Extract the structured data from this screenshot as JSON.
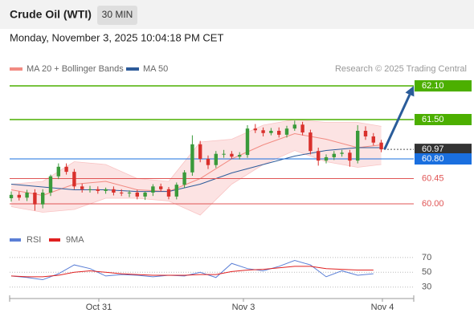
{
  "header": {
    "title": "Crude Oil (WTI)",
    "timeframe": "30 MIN",
    "datetime": "Monday, November 3, 2025 10:04:18 PM CET"
  },
  "chart_data": [
    {
      "type": "candlestick",
      "legend": [
        {
          "name": "MA 20 + Bollinger Bands",
          "color": "#f28b82"
        },
        {
          "name": "MA 50",
          "color": "#2d5b9a"
        }
      ],
      "credit": "Research © 2025 Trading Central",
      "up_color": "#3a9a3a",
      "down_color": "#d9302c",
      "ylim": [
        59.6,
        62.55
      ],
      "xlabels": [
        "Oct 31",
        "Nov 3",
        "Nov 4"
      ],
      "open": [
        60.1,
        60.16,
        60.11,
        60.2,
        59.99,
        60.2,
        60.49,
        60.66,
        60.57,
        60.31,
        60.26,
        60.26,
        60.23,
        60.26,
        60.2,
        60.19,
        60.2,
        60.13,
        60.2,
        60.31,
        60.26,
        60.13,
        60.34,
        60.56,
        61.06,
        60.8,
        60.69,
        60.89,
        60.89,
        60.84,
        60.87,
        61.34,
        61.31,
        61.26,
        61.3,
        61.23,
        61.34,
        61.41,
        61.27,
        60.94,
        60.77,
        60.83,
        60.89,
        60.91,
        60.77,
        61.3,
        61.2,
        61.09
      ],
      "high": [
        60.22,
        60.22,
        60.25,
        60.26,
        60.26,
        60.52,
        60.72,
        60.72,
        60.62,
        60.36,
        60.32,
        60.31,
        60.29,
        60.31,
        60.26,
        60.24,
        60.25,
        60.22,
        60.35,
        60.36,
        60.3,
        60.38,
        60.6,
        61.22,
        61.12,
        60.86,
        60.94,
        60.96,
        60.94,
        60.92,
        61.4,
        61.42,
        61.36,
        61.35,
        61.36,
        61.39,
        61.48,
        61.46,
        61.32,
        61.0,
        60.88,
        60.94,
        60.96,
        60.96,
        61.4,
        61.38,
        61.26,
        61.14
      ],
      "low": [
        60.04,
        60.06,
        60.05,
        59.88,
        59.92,
        60.14,
        60.44,
        60.52,
        60.26,
        60.2,
        60.2,
        60.18,
        60.18,
        60.15,
        60.14,
        60.12,
        60.08,
        60.07,
        60.14,
        60.22,
        60.08,
        60.08,
        60.28,
        60.5,
        60.74,
        60.62,
        60.64,
        60.82,
        60.8,
        60.79,
        60.82,
        61.26,
        61.2,
        61.22,
        61.18,
        61.18,
        61.3,
        61.22,
        60.88,
        60.68,
        60.72,
        60.78,
        60.84,
        60.66,
        60.72,
        61.14,
        61.04,
        60.92
      ],
      "close": [
        60.16,
        60.11,
        60.2,
        59.99,
        60.2,
        60.49,
        60.66,
        60.57,
        60.31,
        60.26,
        60.26,
        60.23,
        60.26,
        60.2,
        60.19,
        60.2,
        60.13,
        60.2,
        60.31,
        60.26,
        60.13,
        60.34,
        60.56,
        61.06,
        60.8,
        60.69,
        60.89,
        60.89,
        60.84,
        60.87,
        61.34,
        61.31,
        61.26,
        61.3,
        61.23,
        61.34,
        61.41,
        61.27,
        60.94,
        60.77,
        60.83,
        60.89,
        60.91,
        60.77,
        61.3,
        61.2,
        61.09,
        60.97
      ],
      "overlays": {
        "x": [
          0,
          4,
          8,
          12,
          16,
          20,
          24,
          28,
          32,
          36,
          40,
          44,
          47
        ],
        "ma20": [
          60.25,
          60.15,
          60.35,
          60.4,
          60.25,
          60.22,
          60.45,
          60.8,
          61.05,
          61.25,
          61.15,
          61.0,
          61.05
        ],
        "ma50": [
          60.35,
          60.3,
          60.25,
          60.25,
          60.22,
          60.22,
          60.35,
          60.55,
          60.7,
          60.85,
          60.95,
          61.0,
          61.0
        ],
        "bb_upper": [
          60.35,
          60.4,
          60.75,
          60.7,
          60.45,
          60.4,
          61.1,
          61.15,
          61.4,
          61.5,
          61.45,
          61.45,
          61.38
        ],
        "bb_lower": [
          59.95,
          59.85,
          59.9,
          60.1,
          60.1,
          60.05,
          59.8,
          60.35,
          60.7,
          60.95,
          60.75,
          60.65,
          60.7
        ]
      },
      "levels": [
        {
          "value": 62.1,
          "label": "62.10",
          "color": "#4caf00",
          "kind": "resistance"
        },
        {
          "value": 61.5,
          "label": "61.50",
          "color": "#4caf00",
          "kind": "resistance"
        },
        {
          "value": 60.97,
          "label": "60.97",
          "color": "#333333",
          "kind": "last"
        },
        {
          "value": 60.8,
          "label": "60.80",
          "color": "#1a6fdf",
          "kind": "pivot"
        },
        {
          "value": 60.45,
          "label": "60.45",
          "color": "#e05555",
          "kind": "support"
        },
        {
          "value": 60,
          "label": "60.00",
          "color": "#e05555",
          "kind": "support"
        }
      ]
    },
    {
      "type": "line",
      "legend": [
        {
          "name": "RSI",
          "color": "#5b7fd6"
        },
        {
          "name": "9MA",
          "color": "#e02020"
        }
      ],
      "ylim": [
        20,
        85
      ],
      "yticks": [
        70,
        50,
        30
      ],
      "x": [
        0,
        2,
        4,
        6,
        8,
        10,
        12,
        14,
        16,
        18,
        20,
        22,
        24,
        26,
        28,
        30,
        32,
        34,
        36,
        38,
        40,
        42,
        44,
        46
      ],
      "rsi": [
        45,
        43,
        40,
        48,
        60,
        55,
        45,
        47,
        46,
        44,
        46,
        45,
        50,
        43,
        62,
        55,
        52,
        58,
        66,
        60,
        44,
        52,
        46,
        48
      ],
      "ma9": [
        45,
        44,
        44,
        46,
        50,
        52,
        50,
        48,
        47,
        46,
        46,
        46,
        47,
        47,
        51,
        53,
        54,
        56,
        58,
        58,
        55,
        54,
        53,
        53
      ]
    }
  ]
}
